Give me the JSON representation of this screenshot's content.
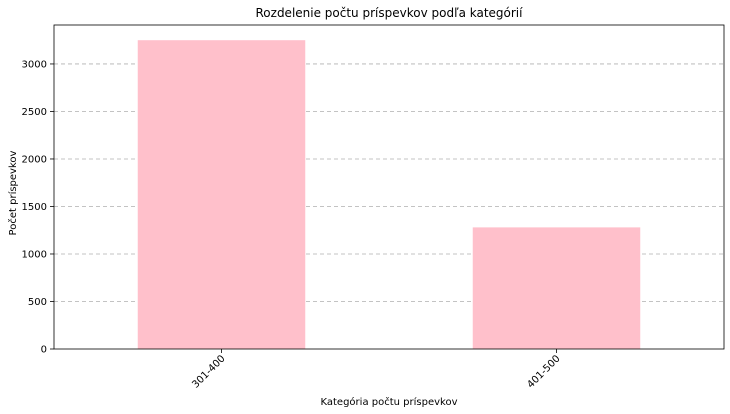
{
  "chart_data": {
    "type": "bar",
    "title": "Rozdelenie počtu príspevkov podľa kategórií",
    "xlabel": "Kategória počtu príspevkov",
    "ylabel": "Počet príspevkov",
    "categories": [
      "301-400",
      "401-500"
    ],
    "values": [
      3250,
      1280
    ],
    "ylim": [
      0,
      3410
    ],
    "yticks": [
      "0",
      "500",
      "1000",
      "1500",
      "2000",
      "2500",
      "3000"
    ],
    "grid": "y",
    "legend": "none",
    "bar_color": "#ffc0cb",
    "xtick_rotation_deg": 45
  }
}
